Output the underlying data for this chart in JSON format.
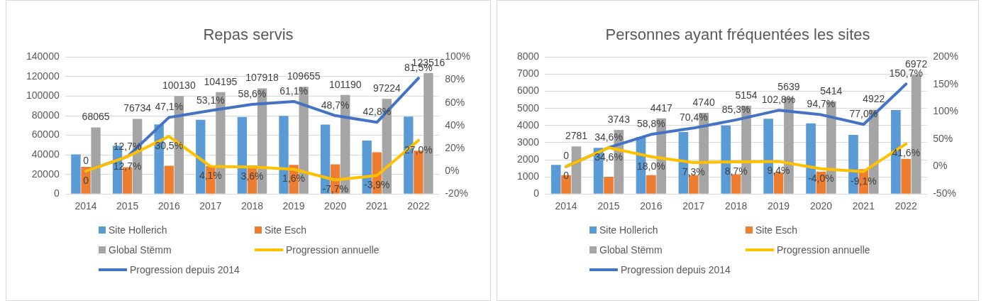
{
  "chart_data": [
    {
      "type": "bar",
      "title": "Repas servis",
      "categories": [
        "2014",
        "2015",
        "2016",
        "2017",
        "2018",
        "2019",
        "2020",
        "2021",
        "2022"
      ],
      "series": [
        {
          "name": "Site Hollerich",
          "color": "#5b9bd5",
          "values": [
            40400,
            49300,
            71200,
            75800,
            78700,
            79900,
            71000,
            54600,
            79200
          ]
        },
        {
          "name": "Site Esch",
          "color": "#ed7d31",
          "values": [
            27700,
            27400,
            28900,
            28400,
            29200,
            29800,
            30200,
            42600,
            44300
          ]
        },
        {
          "name": "Global Stëmm",
          "color": "#a5a5a5",
          "values": [
            68065,
            76734,
            100130,
            104195,
            107918,
            109655,
            101190,
            97224,
            123516
          ],
          "value_labels": [
            "68065",
            "76734",
            "100130",
            "104195",
            "107918",
            "109655",
            "101190",
            "97224",
            "123516"
          ]
        },
        {
          "name": "Progression annuelle",
          "type": "line",
          "axis": "y2",
          "color": "#ffc000",
          "values": [
            0,
            12.7,
            30.5,
            4.1,
            3.6,
            1.6,
            -7.7,
            -3.9,
            27.0
          ],
          "value_labels": [
            "0",
            "12,7%",
            "30,5%",
            "4,1%",
            "3,6%",
            "1,6%",
            "-7,7%",
            "-3,9%",
            "27,0%"
          ]
        },
        {
          "name": "Progression depuis 2014",
          "type": "line",
          "axis": "y2",
          "color": "#4472c4",
          "values": [
            0,
            12.7,
            47.1,
            53.1,
            58.6,
            61.1,
            48.7,
            42.8,
            81.5
          ],
          "value_labels": [
            "0",
            "12,7%",
            "47,1%",
            "53,1%",
            "58,6%",
            "61,1%",
            "48,7%",
            "42,8%",
            "81,5%"
          ]
        }
      ],
      "ylim": [
        0,
        140000
      ],
      "yticks": [
        0,
        20000,
        40000,
        60000,
        80000,
        100000,
        120000,
        140000
      ],
      "y2lim": [
        -20,
        100
      ],
      "y2ticks": [
        {
          "value": -20,
          "label": "-20%"
        },
        {
          "value": 0,
          "label": "0%"
        },
        {
          "value": 20,
          "label": "20%"
        },
        {
          "value": 40,
          "label": "40%"
        },
        {
          "value": 60,
          "label": "60%"
        },
        {
          "value": 80,
          "label": "80%"
        },
        {
          "value": 100,
          "label": "100%"
        }
      ],
      "grid": "y",
      "legend": "bottom",
      "marker": "none"
    },
    {
      "type": "bar",
      "title": "Personnes ayant fréquentées les sites",
      "categories": [
        "2014",
        "2015",
        "2016",
        "2017",
        "2018",
        "2019",
        "2020",
        "2021",
        "2022"
      ],
      "series": [
        {
          "name": "Site Hollerich",
          "color": "#5b9bd5",
          "values": [
            1700,
            2700,
            3320,
            3620,
            4000,
            4400,
            4130,
            3450,
            4900
          ]
        },
        {
          "name": "Site Esch",
          "color": "#ed7d31",
          "values": [
            1100,
            1000,
            1100,
            1100,
            1150,
            1250,
            1300,
            1450,
            2050
          ]
        },
        {
          "name": "Global Stëmm",
          "color": "#a5a5a5",
          "values": [
            2781,
            3743,
            4417,
            4740,
            5154,
            5639,
            5414,
            4922,
            6972
          ],
          "value_labels": [
            "2781",
            "3743",
            "4417",
            "4740",
            "5154",
            "5639",
            "5414",
            "4922",
            "6972"
          ]
        },
        {
          "name": "Progression annuelle",
          "type": "line",
          "axis": "y2",
          "color": "#ffc000",
          "values": [
            0,
            34.6,
            18.0,
            7.3,
            8.7,
            9.4,
            -4.0,
            -9.1,
            41.6
          ],
          "value_labels": [
            "0",
            "34,6%",
            "18,0%",
            "7,3%",
            "8,7%",
            "9,4%",
            "-4,0%",
            "-9,1%",
            "41,6%"
          ]
        },
        {
          "name": "Progression depuis 2014",
          "type": "line",
          "axis": "y2",
          "color": "#4472c4",
          "values": [
            0,
            34.6,
            58.8,
            70.4,
            85.3,
            102.8,
            94.7,
            77.0,
            150.7
          ],
          "value_labels": [
            "0",
            "34,6%",
            "58,8%",
            "70,4%",
            "85,3%",
            "102,8%",
            "94,7%",
            "77,0%",
            "150,7%"
          ]
        }
      ],
      "ylim": [
        0,
        8000
      ],
      "yticks": [
        0,
        1000,
        2000,
        3000,
        4000,
        5000,
        6000,
        7000,
        8000
      ],
      "y2lim": [
        -50,
        200
      ],
      "y2ticks": [
        {
          "value": -50,
          "label": "-50%"
        },
        {
          "value": 0,
          "label": "0%"
        },
        {
          "value": 50,
          "label": "50%"
        },
        {
          "value": 100,
          "label": "100%"
        },
        {
          "value": 150,
          "label": "150%"
        },
        {
          "value": 200,
          "label": "200%"
        }
      ],
      "grid": "y",
      "legend": "bottom",
      "marker": "none"
    }
  ]
}
